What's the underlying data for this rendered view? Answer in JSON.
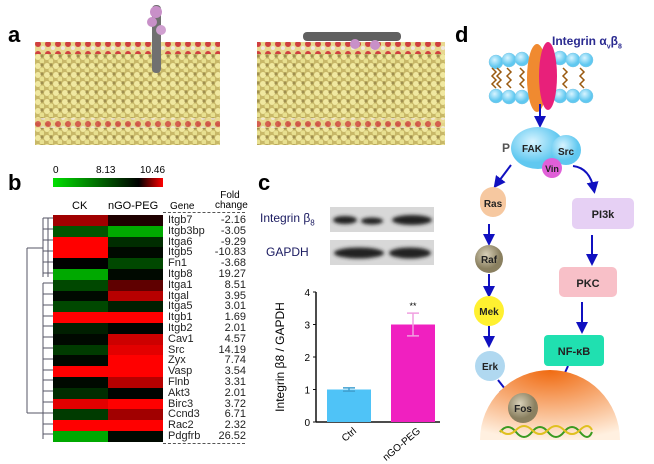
{
  "panels": {
    "a": "a",
    "b": "b",
    "c": "c",
    "d": "d"
  },
  "heatmap": {
    "colorbar": {
      "min": "0",
      "mid": "8.13",
      "max": "10.46",
      "colors": [
        "#00e000",
        "#000000",
        "#ff0000"
      ]
    },
    "columns": [
      "CK",
      "nGO-PEG"
    ],
    "gene_header": "Gene",
    "fold_header_1": "Fold",
    "fold_header_2": "change",
    "rows": [
      {
        "gene": "Itgb7",
        "fold": "-2.16",
        "values": [
          9.6,
          8.4
        ]
      },
      {
        "gene": "Itgb3bp",
        "fold": "-3.05",
        "values": [
          5.0,
          2.0
        ]
      },
      {
        "gene": "Itga6",
        "fold": "-9.29",
        "values": [
          10.46,
          6.5
        ]
      },
      {
        "gene": "Itgb5",
        "fold": "-10.83",
        "values": [
          10.46,
          7.8
        ]
      },
      {
        "gene": "Fn1",
        "fold": "-3.68",
        "values": [
          8.1,
          5.5
        ]
      },
      {
        "gene": "Itgb8",
        "fold": "19.27",
        "values": [
          2.0,
          7.8
        ]
      },
      {
        "gene": "Itga1",
        "fold": "8.51",
        "values": [
          5.5,
          9.0
        ]
      },
      {
        "gene": "Itgal",
        "fold": "3.95",
        "values": [
          7.8,
          9.8
        ]
      },
      {
        "gene": "Itga5",
        "fold": "3.01",
        "values": [
          5.5,
          7.0
        ]
      },
      {
        "gene": "Itgb1",
        "fold": "1.69",
        "values": [
          10.46,
          10.46
        ]
      },
      {
        "gene": "Itgb2",
        "fold": "2.01",
        "values": [
          7.0,
          8.0
        ]
      },
      {
        "gene": "Cav1",
        "fold": "4.57",
        "values": [
          7.8,
          10.0
        ]
      },
      {
        "gene": "Src",
        "fold": "14.19",
        "values": [
          6.0,
          10.2
        ]
      },
      {
        "gene": "Zyx",
        "fold": "7.74",
        "values": [
          7.8,
          10.46
        ]
      },
      {
        "gene": "Vasp",
        "fold": "3.54",
        "values": [
          10.46,
          10.46
        ]
      },
      {
        "gene": "Flnb",
        "fold": "3.31",
        "values": [
          7.8,
          9.8
        ]
      },
      {
        "gene": "Akt3",
        "fold": "2.01",
        "values": [
          6.5,
          8.0
        ]
      },
      {
        "gene": "Birc3",
        "fold": "3.72",
        "values": [
          10.2,
          10.46
        ]
      },
      {
        "gene": "Ccnd3",
        "fold": "6.71",
        "values": [
          6.0,
          9.6
        ]
      },
      {
        "gene": "Rac2",
        "fold": "2.32",
        "values": [
          10.46,
          10.46
        ]
      },
      {
        "gene": "Pdgfrb",
        "fold": "26.52",
        "values": [
          2.0,
          7.8
        ]
      }
    ]
  },
  "blot": {
    "label1": "Integrin β",
    "label1_sub": "8",
    "label2": "GAPDH"
  },
  "chart_data": {
    "type": "bar",
    "categories": [
      "Ctrl",
      "nGO-PEG"
    ],
    "values": [
      1.0,
      3.0
    ],
    "errors": [
      0.05,
      0.35
    ],
    "annotations": [
      "",
      "**"
    ],
    "ylabel": "Integrin β8 / GAPDH",
    "ylim": [
      0,
      4
    ],
    "yticks": [
      "0",
      "1",
      "2",
      "3",
      "4"
    ],
    "colors": [
      "#4fc3f7",
      "#f020c0"
    ]
  },
  "pathway": {
    "title": "Integrin α",
    "title_sub1": "v",
    "title_mid": "β",
    "title_sub2": "8",
    "nodes": {
      "p": "P",
      "fak": "FAK",
      "src": "Src",
      "vin": "Vin",
      "ras": "Ras",
      "raf": "Raf",
      "mek": "Mek",
      "erk": "Erk",
      "pi3k": "PI3k",
      "pkc": "PKC",
      "nfkb": "NF-κB",
      "fos": "Fos"
    }
  }
}
